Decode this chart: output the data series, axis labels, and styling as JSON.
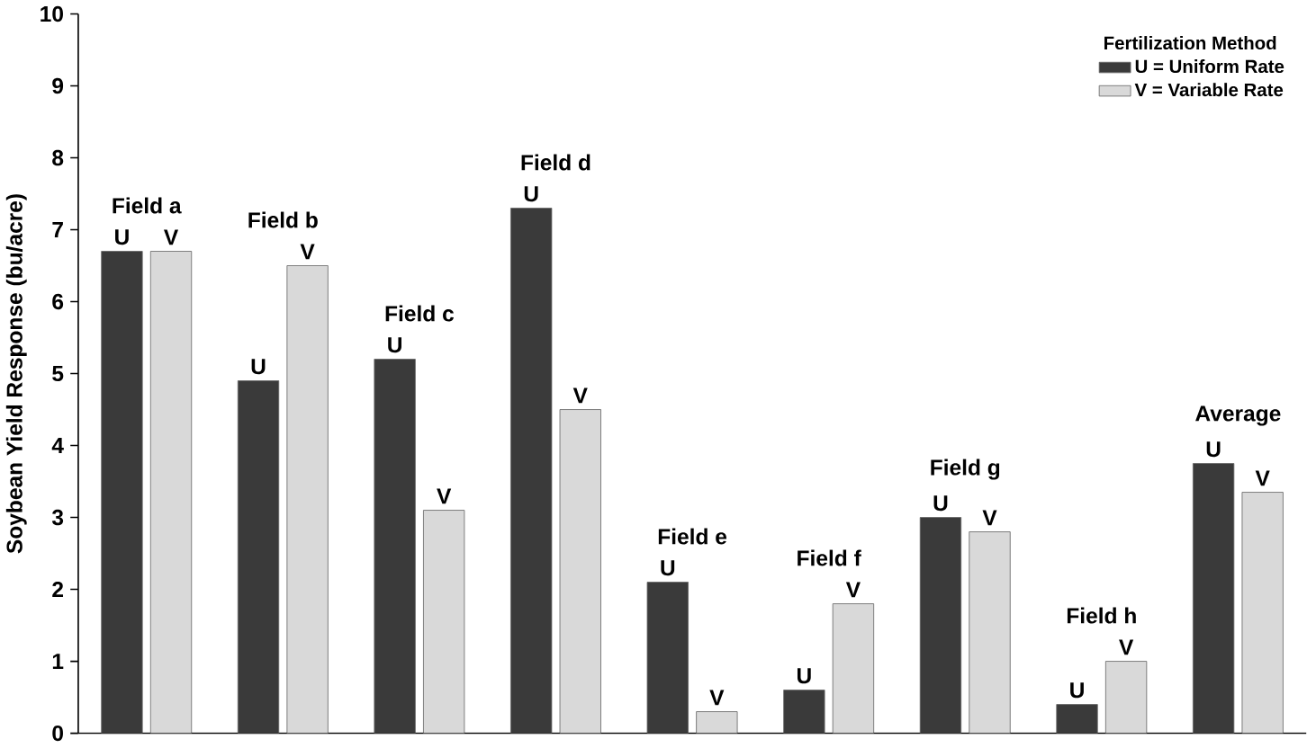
{
  "chart_data": {
    "type": "bar",
    "ylabel": "Soybean Yield Response (bu/acre)",
    "legend_title": "Fertilization Method",
    "legend": "top right",
    "categories": [
      "Field a",
      "Field b",
      "Field c",
      "Field d",
      "Field e",
      "Field f",
      "Field g",
      "Field h",
      "Average"
    ],
    "series": [
      {
        "name": "U = Uniform Rate",
        "color": "#3a3a3a",
        "values": [
          6.7,
          4.9,
          5.2,
          7.3,
          2.1,
          0.6,
          3.0,
          0.4,
          3.75
        ],
        "value_labels": [
          "U",
          "U",
          "U",
          "U",
          "U",
          "U",
          "U",
          "U",
          "U"
        ]
      },
      {
        "name": "V = Variable Rate",
        "color": "#d9d9d9",
        "values": [
          6.7,
          6.5,
          3.1,
          4.5,
          0.3,
          1.8,
          2.8,
          1.0,
          3.35
        ],
        "value_labels": [
          "V",
          "V",
          "V",
          "V",
          "V",
          "V",
          "V",
          "V",
          "V"
        ]
      }
    ],
    "ylim": [
      0,
      10
    ],
    "yticks": [
      0,
      1,
      2,
      3,
      4,
      5,
      6,
      7,
      8,
      9,
      10
    ]
  }
}
